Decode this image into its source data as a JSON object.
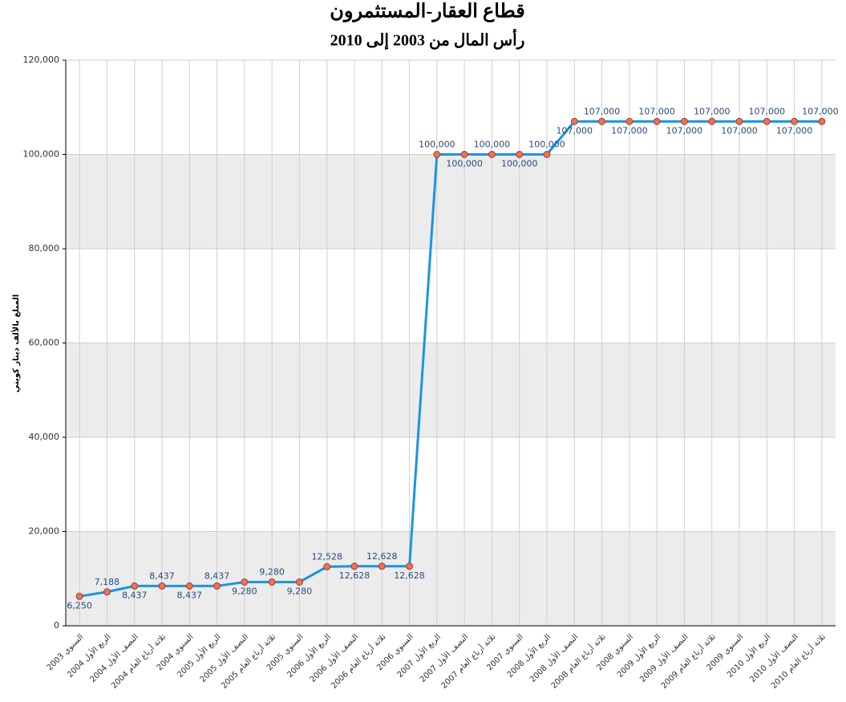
{
  "chart_data": {
    "type": "line",
    "title": "قطاع العقار-المستثمرون",
    "subtitle": "رأس المال من 2003 إلى 2010",
    "y_label": "المبلغ بالألف دينار كويتي",
    "categories": [
      "السنوي 2003",
      "الربع الأول 2004",
      "النصف الأول 2004",
      "ثلاثة أرباع العام 2004",
      "السنوي 2004",
      "الربع الأول 2005",
      "النصف الأول 2005",
      "ثلاثة أرباع العام 2005",
      "السنوي 2005",
      "الربع الأول 2006",
      "النصف الأول 2006",
      "ثلاثة أرباع العام 2006",
      "السنوي 2006",
      "الربع الأول 2007",
      "النصف الأول 2007",
      "ثلاثة أرباع العام 2007",
      "السنوي 2007",
      "الربع الأول 2008",
      "النصف الأول 2008",
      "ثلاثة أرباع العام 2008",
      "السنوي 2008",
      "الربع الأول 2009",
      "النصف الأول 2009",
      "ثلاثة أرباع العام 2009",
      "السنوي 2009",
      "الربع الأول 2010",
      "النصف الأول 2010",
      "ثلاثة أرباع العام 2010"
    ],
    "values": [
      6250,
      7188,
      8437,
      8437,
      8437,
      8437,
      9280,
      9280,
      9280,
      12528,
      12628,
      12628,
      12628,
      100000,
      100000,
      100000,
      100000,
      100000,
      107000,
      107000,
      107000,
      107000,
      107000,
      107000,
      107000,
      107000,
      107000,
      107000
    ],
    "value_labels": [
      "6,250",
      "7,188",
      "8,437",
      "8,437",
      "8,437",
      "8,437",
      "9,280",
      "9,280",
      "9,280",
      "12,528",
      "12,628",
      "12,628",
      "12,628",
      "100,000",
      "100,000",
      "100,000",
      "100,000",
      "100,000",
      "107,000",
      "107,000",
      "107,000",
      "107,000",
      "107,000",
      "107,000",
      "107,000",
      "107,000",
      "107,000",
      "107,000"
    ],
    "color": "#1a94e6",
    "marker_color": "#f07050",
    "ylim": [
      0,
      120000
    ],
    "yticks": [
      0,
      {
        "value": 20000,
        "label": "20,000"
      },
      {
        "value": 40000,
        "label": "40,000"
      },
      {
        "value": 60000,
        "label": "60,000"
      },
      {
        "value": 80000,
        "label": "80,000"
      },
      {
        "value": 100000,
        "label": "100,000"
      },
      {
        "value": 120000,
        "label": "120,000"
      }
    ],
    "grid": true
  }
}
